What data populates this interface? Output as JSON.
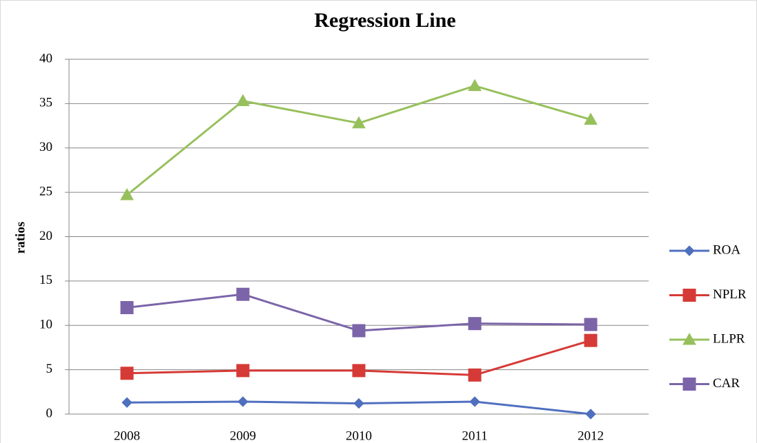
{
  "chart_data": {
    "type": "line",
    "title": "Regression Line",
    "y_label": "ratios",
    "categories": [
      "2008",
      "2009",
      "2010",
      "2011",
      "2012"
    ],
    "series": [
      {
        "name": "ROA",
        "color": "#4f6fbf",
        "marker": "diamond",
        "values": [
          1.3,
          1.4,
          1.2,
          1.4,
          0.0
        ]
      },
      {
        "name": "NPLR",
        "color": "#d63a36",
        "marker": "square",
        "values": [
          4.6,
          4.9,
          4.9,
          4.4,
          8.3
        ]
      },
      {
        "name": "LLPR",
        "color": "#97c05c",
        "marker": "triangle",
        "values": [
          24.7,
          35.3,
          32.8,
          37.0,
          33.2
        ]
      },
      {
        "name": "CAR",
        "color": "#7b64a8",
        "marker": "square",
        "values": [
          12.0,
          13.5,
          9.4,
          10.2,
          10.1
        ]
      }
    ],
    "ylim": [
      0,
      40
    ],
    "yticks": [
      0,
      5,
      10,
      15,
      20,
      25,
      30,
      35,
      40
    ],
    "grid": true,
    "legend": "right"
  }
}
